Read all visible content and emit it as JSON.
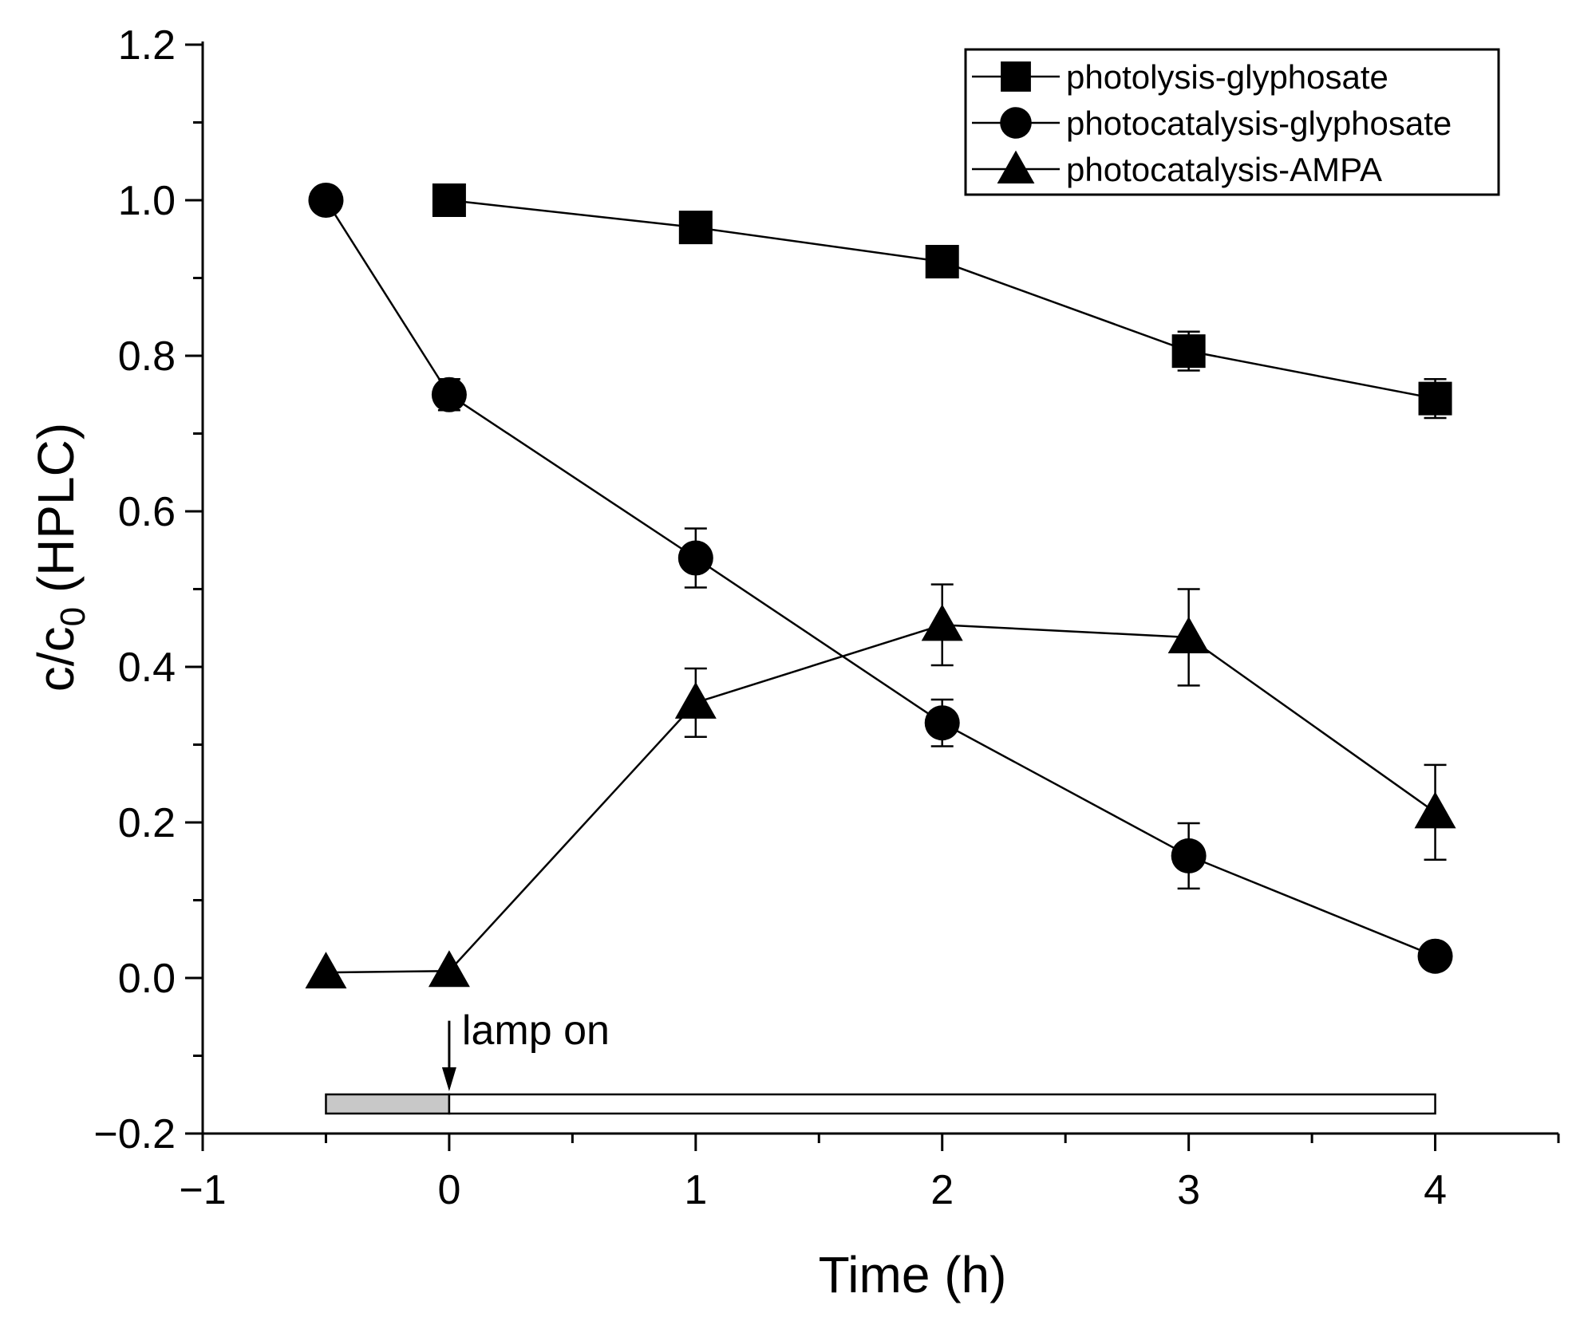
{
  "chart_data": {
    "type": "line",
    "title": "",
    "xlabel": "Time (h)",
    "ylabel": {
      "main": "c/c",
      "subscript": "0",
      "suffix": " (HPLC)"
    },
    "xlim": [
      -1,
      4.5
    ],
    "ylim": [
      -0.2,
      1.2
    ],
    "x_ticks": [
      -1,
      0,
      1,
      2,
      3,
      4
    ],
    "x_tick_labels": [
      "−1",
      "0",
      "1",
      "2",
      "3",
      "4"
    ],
    "x_minor_ticks": [
      -0.5,
      0.5,
      1.5,
      2.5,
      3.5,
      4.5
    ],
    "y_ticks": [
      -0.2,
      0.0,
      0.2,
      0.4,
      0.6,
      0.8,
      1.0,
      1.2
    ],
    "y_tick_labels": [
      "−0.2",
      "0.0",
      "0.2",
      "0.4",
      "0.6",
      "0.8",
      "1.0",
      "1.2"
    ],
    "y_minor_ticks": [
      -0.1,
      0.1,
      0.3,
      0.5,
      0.7,
      0.9,
      1.1
    ],
    "grid": false,
    "legend_position": "top-right",
    "series": [
      {
        "name": "photolysis-glyphosate",
        "marker": "square",
        "x": [
          0,
          1,
          2,
          3,
          4
        ],
        "values": [
          1.0,
          0.965,
          0.921,
          0.806,
          0.745
        ],
        "error": [
          0.0,
          0.01,
          0.015,
          0.025,
          0.025
        ]
      },
      {
        "name": "photocatalysis-glyphosate",
        "marker": "circle",
        "x": [
          -0.5,
          0,
          1,
          2,
          3,
          4
        ],
        "values": [
          1.0,
          0.75,
          0.54,
          0.328,
          0.157,
          0.028
        ],
        "error": [
          0.0,
          0.02,
          0.038,
          0.03,
          0.042,
          0.0
        ]
      },
      {
        "name": "photocatalysis-AMPA",
        "marker": "triangle",
        "x": [
          -0.5,
          0,
          1,
          2,
          3,
          4
        ],
        "values": [
          0.007,
          0.009,
          0.354,
          0.454,
          0.438,
          0.213
        ],
        "error": [
          0.0,
          0.0,
          0.044,
          0.052,
          0.062,
          0.061
        ]
      }
    ],
    "annotations": {
      "lamp_on": {
        "text": "lamp on",
        "x": 0
      },
      "timeline_bar": {
        "y": -0.162,
        "dark": {
          "from": -0.5,
          "to": 0,
          "color": "#c8c8c8"
        },
        "light": {
          "from": 0,
          "to": 4,
          "color": "#ffffff"
        }
      }
    }
  }
}
